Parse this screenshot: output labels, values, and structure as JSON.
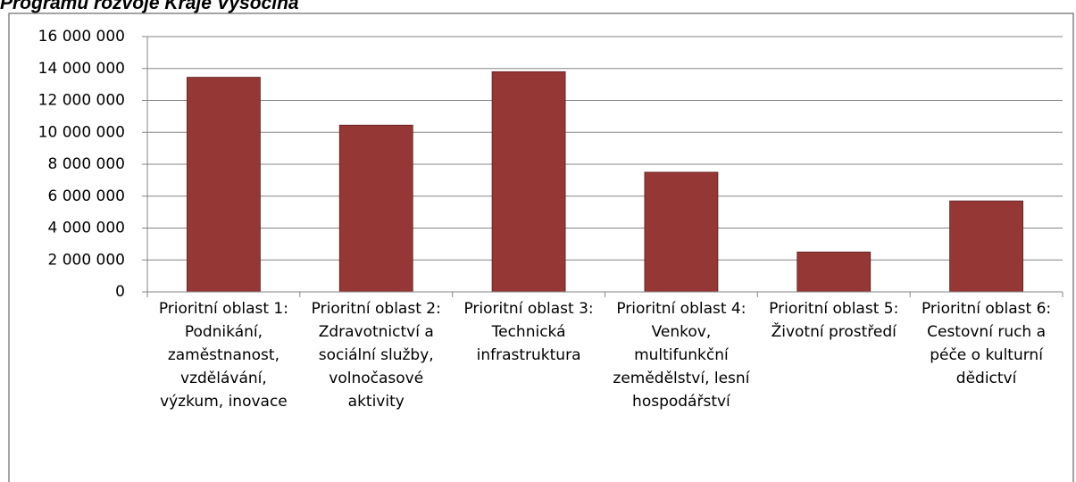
{
  "chart_data": {
    "type": "bar",
    "title": "Programu rozvoje Kraje Vysočina",
    "categories": [
      "Prioritní oblast 1: Podnikání, zaměstnanost, vzdělávání, výzkum, inovace",
      "Prioritní oblast 2: Zdravotnictví a sociální služby, volnočasové aktivity",
      "Prioritní oblast 3: Technická infrastruktura",
      "Prioritní oblast 4: Venkov, multifunkční zemědělství, lesní hospodářství",
      "Prioritní oblast 5: Životní prostředí",
      "Prioritní oblast 6: Cestovní ruch a péče o kulturní dědictví"
    ],
    "values": [
      13450000,
      10450000,
      13800000,
      7500000,
      2500000,
      5700000
    ],
    "color": "#953735",
    "ylim": [
      0,
      16000000
    ],
    "yticks": [
      0,
      {
        "value": 2000000,
        "label": "2 000 000"
      },
      {
        "value": 4000000,
        "label": "4 000 000"
      },
      {
        "value": 6000000,
        "label": "6 000 000"
      },
      {
        "value": 8000000,
        "label": "8 000 000"
      },
      {
        "value": 10000000,
        "label": "10 000 000"
      },
      {
        "value": 12000000,
        "label": "12 000 000"
      },
      {
        "value": 14000000,
        "label": "14 000 000"
      },
      {
        "value": 16000000,
        "label": "16 000 000"
      }
    ],
    "grid": true
  }
}
